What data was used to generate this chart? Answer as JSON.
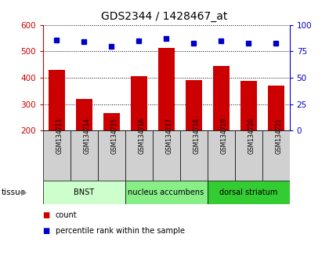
{
  "title": "GDS2344 / 1428467_at",
  "samples": [
    "GSM134713",
    "GSM134714",
    "GSM134715",
    "GSM134716",
    "GSM134717",
    "GSM134718",
    "GSM134719",
    "GSM134720",
    "GSM134721"
  ],
  "counts": [
    430,
    320,
    268,
    405,
    512,
    390,
    445,
    388,
    370
  ],
  "percentiles": [
    86,
    84,
    80,
    85,
    87,
    83,
    85,
    83,
    83
  ],
  "ylim_left": [
    200,
    600
  ],
  "ylim_right": [
    0,
    100
  ],
  "yticks_left": [
    200,
    300,
    400,
    500,
    600
  ],
  "yticks_right": [
    0,
    25,
    50,
    75,
    100
  ],
  "bar_color": "#cc0000",
  "dot_color": "#0000cc",
  "bar_bottom": 200,
  "groups": [
    {
      "label": "BNST",
      "start": 0,
      "end": 3,
      "color": "#ccffcc"
    },
    {
      "label": "nucleus accumbens",
      "start": 3,
      "end": 6,
      "color": "#88ee88"
    },
    {
      "label": "dorsal striatum",
      "start": 6,
      "end": 9,
      "color": "#33cc33"
    }
  ],
  "tissue_label": "tissue",
  "legend_count_label": "count",
  "legend_pct_label": "percentile rank within the sample",
  "left_tick_color": "#cc0000",
  "right_tick_color": "#0000cc",
  "grid_color": "#000000",
  "sample_box_color": "#d0d0d0",
  "fig_bg": "#ffffff",
  "plot_bg": "#ffffff"
}
